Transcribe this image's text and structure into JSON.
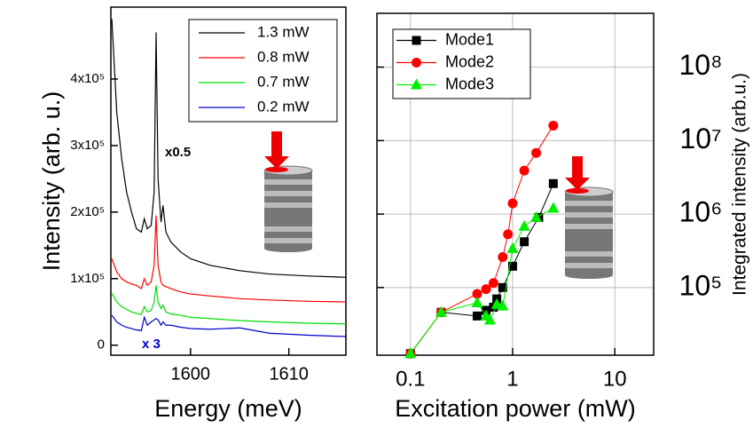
{
  "chart_data": [
    {
      "type": "line",
      "y_label": "Intensity (arb. u.)",
      "x_label": "Energy (meV)",
      "xlim": [
        1591.9,
        1615.8
      ],
      "ylim": [
        -15000,
        508000
      ],
      "xticks": [
        1600,
        1610
      ],
      "yticks": [
        {
          "value": 0,
          "label": "0"
        },
        {
          "value": 100000,
          "label": "1x10⁵"
        },
        {
          "value": 200000,
          "label": "2x10⁵"
        },
        {
          "value": 300000,
          "label": "3x10⁵"
        },
        {
          "value": 400000,
          "label": "4x10⁵"
        }
      ],
      "legend": "top right",
      "annotations": [
        "x0.5",
        "x 3"
      ],
      "x": [
        1592,
        1592.5,
        1593,
        1593.5,
        1594,
        1594.5,
        1595,
        1595.3,
        1595.6,
        1596,
        1596.3,
        1596.5,
        1596.7,
        1597,
        1597.2,
        1597.5,
        1598,
        1599,
        1600,
        1602,
        1605,
        1608,
        1612,
        1615.8
      ],
      "series": [
        {
          "name": "1.3 mW",
          "color": "#000000",
          "values": [
            490000,
            350000,
            280000,
            230000,
            200000,
            175000,
            170000,
            190000,
            175000,
            180000,
            230000,
            470000,
            250000,
            185000,
            210000,
            170000,
            155000,
            140000,
            130000,
            120000,
            112000,
            107000,
            104000,
            102000
          ]
        },
        {
          "name": "0.8 mW",
          "color": "#ff0000",
          "values": [
            130000,
            110000,
            100000,
            95000,
            92000,
            90000,
            85000,
            100000,
            90000,
            95000,
            120000,
            195000,
            120000,
            95000,
            90000,
            88000,
            85000,
            80000,
            77000,
            74000,
            70000,
            68000,
            66000,
            65000
          ]
        },
        {
          "name": "0.7 mW",
          "color": "#00dd00",
          "values": [
            78000,
            65000,
            58000,
            54000,
            50000,
            48000,
            46000,
            58000,
            50000,
            52000,
            65000,
            90000,
            65000,
            55000,
            60000,
            50000,
            47000,
            45000,
            42000,
            40000,
            37000,
            35000,
            33000,
            32000
          ]
        },
        {
          "name": "0.2 mW",
          "color": "#0000cc",
          "values": [
            45000,
            35000,
            30000,
            27000,
            25000,
            23000,
            22000,
            42000,
            30000,
            35000,
            38000,
            40000,
            38000,
            30000,
            35000,
            30000,
            30000,
            27000,
            25000,
            24000,
            26000,
            18000,
            15000,
            13000
          ]
        }
      ]
    },
    {
      "type": "scatter",
      "x_label": "Excitation power (mW)",
      "y_label": "Integrated intensity (arb.u.)",
      "xscale": "log",
      "yscale": "log",
      "grid": true,
      "legend": "top left",
      "xlim": [
        0.047,
        24
      ],
      "ylim": [
        12000,
        540000000
      ],
      "xticks": [
        0.1,
        1,
        10
      ],
      "yticks": [
        {
          "value": 100000,
          "label": "10⁵"
        },
        {
          "value": 1000000,
          "label": "10⁶"
        },
        {
          "value": 10000000,
          "label": "10⁷"
        },
        {
          "value": 100000000,
          "label": "10⁸"
        }
      ],
      "series": [
        {
          "name": "Mode1",
          "color": "#000000",
          "marker": "square",
          "x": [
            0.1,
            0.2,
            0.45,
            0.55,
            0.65,
            0.7,
            0.8,
            1.0,
            1.3,
            1.8,
            2.5
          ],
          "values": [
            12600,
            46000,
            41000,
            49000,
            54000,
            70000,
            100000,
            195000,
            420000,
            900000,
            2600000
          ]
        },
        {
          "name": "Mode2",
          "color": "#ff0000",
          "marker": "circle",
          "x": [
            0.1,
            0.2,
            0.45,
            0.55,
            0.65,
            0.8,
            0.9,
            1.0,
            1.3,
            1.7,
            2.5
          ],
          "values": [
            12600,
            46000,
            82000,
            95000,
            115000,
            260000,
            530000,
            1400000,
            3900000,
            6800000,
            16000000
          ]
        },
        {
          "name": "Mode3",
          "color": "#00ee00",
          "marker": "triangle",
          "x": [
            0.1,
            0.2,
            0.45,
            0.55,
            0.6,
            0.7,
            0.8,
            1.0,
            1.3,
            1.7,
            2.5
          ],
          "values": [
            12600,
            46000,
            62000,
            41000,
            36000,
            59000,
            56000,
            340000,
            680000,
            900000,
            1200000
          ]
        }
      ]
    }
  ]
}
